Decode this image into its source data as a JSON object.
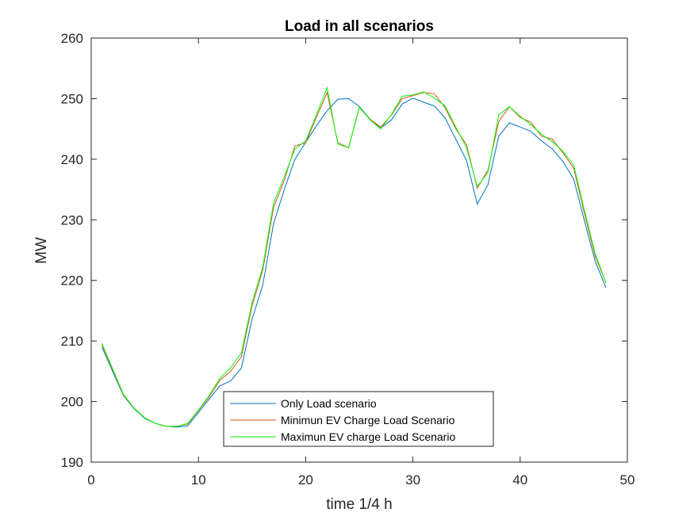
{
  "chart_data": {
    "type": "line",
    "title": "Load in all scenarios",
    "xlabel": "time 1/4 h",
    "ylabel": "MW",
    "xlim": [
      0,
      50
    ],
    "ylim": [
      190,
      260
    ],
    "xticks": [
      0,
      10,
      20,
      30,
      40,
      50
    ],
    "yticks": [
      190,
      200,
      210,
      220,
      230,
      240,
      250,
      260
    ],
    "grid": false,
    "legend_position": "bottom-center",
    "x": [
      1,
      2,
      3,
      4,
      5,
      6,
      7,
      8,
      9,
      10,
      11,
      12,
      13,
      14,
      15,
      16,
      17,
      18,
      19,
      20,
      21,
      22,
      23,
      24,
      25,
      26,
      27,
      28,
      29,
      30,
      31,
      32,
      33,
      34,
      35,
      36,
      37,
      38,
      39,
      40,
      41,
      42,
      43,
      44,
      45,
      46,
      47,
      48
    ],
    "series": [
      {
        "name": "Only Load scenario",
        "color": "#0072bd",
        "values": [
          209.0,
          205.0,
          201.0,
          198.8,
          197.2,
          196.4,
          195.9,
          195.8,
          196.0,
          198.2,
          200.4,
          202.6,
          203.4,
          205.5,
          213.6,
          219.2,
          229.3,
          235.0,
          240.0,
          242.8,
          245.5,
          248.0,
          249.9,
          250.0,
          248.7,
          246.6,
          245.1,
          246.5,
          249.1,
          250.1,
          249.4,
          248.8,
          246.8,
          243.3,
          239.8,
          232.6,
          235.8,
          243.8,
          246.0,
          245.3,
          244.6,
          243.0,
          241.7,
          239.6,
          236.7,
          229.8,
          223.2,
          218.8
        ]
      },
      {
        "name": "Minimun EV Charge Load Scenario",
        "color": "#d95319",
        "values": [
          209.4,
          205.3,
          201.1,
          198.9,
          197.3,
          196.4,
          195.9,
          195.9,
          196.3,
          198.5,
          200.8,
          203.5,
          205.0,
          207.4,
          215.8,
          221.7,
          232.0,
          236.5,
          242.2,
          242.7,
          246.9,
          251.0,
          242.7,
          241.9,
          248.5,
          246.6,
          245.3,
          247.3,
          250.0,
          250.5,
          251.0,
          250.8,
          248.5,
          245.0,
          242.4,
          235.2,
          238.2,
          246.2,
          248.7,
          246.9,
          246.1,
          243.8,
          243.3,
          241.0,
          238.5,
          231.0,
          224.0,
          219.6
        ]
      },
      {
        "name": "Maximun EV charge Load Scenario",
        "color": "#00ff00",
        "values": [
          209.6,
          205.4,
          201.2,
          198.9,
          197.3,
          196.4,
          195.9,
          195.9,
          196.4,
          198.6,
          201.0,
          203.8,
          205.6,
          208.0,
          216.3,
          222.2,
          232.7,
          237.1,
          241.7,
          243.0,
          247.3,
          251.8,
          242.5,
          241.9,
          248.6,
          246.5,
          245.0,
          247.4,
          250.4,
          250.6,
          251.1,
          250.1,
          248.8,
          245.3,
          241.9,
          235.5,
          237.8,
          247.3,
          248.7,
          247.1,
          245.7,
          244.1,
          242.9,
          241.3,
          239.0,
          231.5,
          224.4,
          219.6
        ]
      }
    ]
  }
}
